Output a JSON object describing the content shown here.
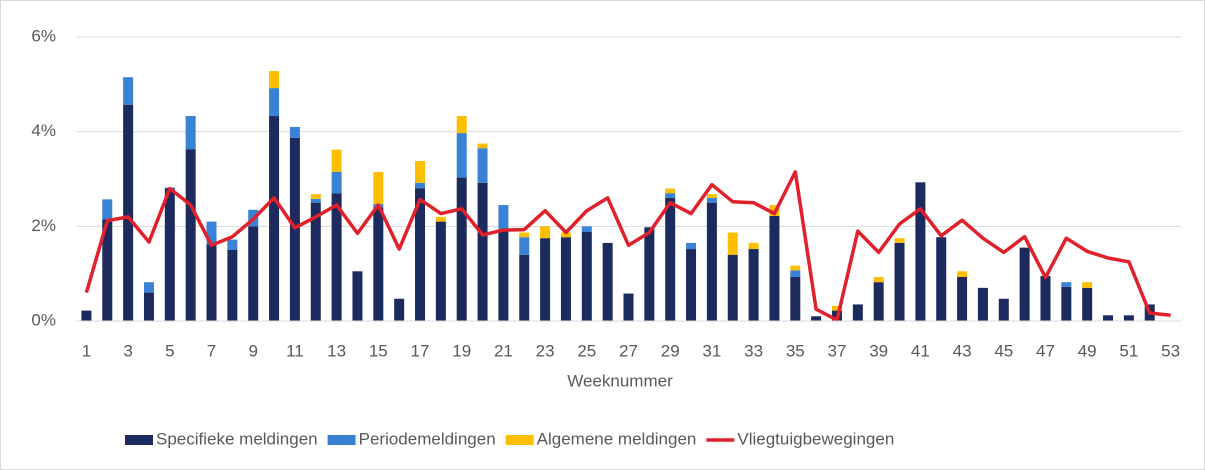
{
  "chart_data": {
    "type": "bar",
    "stacked": true,
    "x_label": "Weeknummer",
    "categories": [
      "1",
      null,
      "3",
      null,
      "5",
      null,
      "7",
      null,
      "9",
      null,
      "11",
      null,
      "13",
      null,
      "15",
      null,
      "17",
      null,
      "19",
      null,
      "21",
      null,
      "23",
      null,
      "25",
      null,
      "27",
      null,
      "29",
      null,
      "31",
      null,
      "33",
      null,
      "35",
      null,
      "37",
      null,
      "39",
      null,
      "41",
      null,
      "43",
      null,
      "45",
      null,
      "47",
      null,
      "49",
      null,
      "51",
      null,
      "53"
    ],
    "ylim": [
      0,
      6
    ],
    "yticks": [
      {
        "value": 0,
        "label": "0%"
      },
      {
        "value": 2,
        "label": "2%"
      },
      {
        "value": 4,
        "label": "4%"
      },
      {
        "value": 6,
        "label": "6%"
      }
    ],
    "grid": true,
    "legend": "bottom",
    "series": [
      {
        "name": "Specifieke meldingen",
        "color": "#1c2a5e",
        "values": [
          0.22,
          2.15,
          4.57,
          0.6,
          2.8,
          3.63,
          1.62,
          1.5,
          2.0,
          4.33,
          3.87,
          2.5,
          2.7,
          1.05,
          2.4,
          0.47,
          2.8,
          2.1,
          3.03,
          2.92,
          1.9,
          1.4,
          1.75,
          1.77,
          1.88,
          1.65,
          0.58,
          1.98,
          2.6,
          1.52,
          2.5,
          1.4,
          1.52,
          2.22,
          0.93,
          0.1,
          0.22,
          0.35,
          0.82,
          1.65,
          2.93,
          1.77,
          0.93,
          0.7,
          0.47,
          1.55,
          0.95,
          0.72,
          0.7,
          0.12,
          0.12,
          0.35,
          0
        ]
      },
      {
        "name": "Periodemeldingen",
        "color": "#3a82d6",
        "values": [
          0,
          0.42,
          0.58,
          0.22,
          0.02,
          0.7,
          0.48,
          0.22,
          0.35,
          0.59,
          0.23,
          0.08,
          0.45,
          0,
          0.07,
          0,
          0.12,
          0,
          0.94,
          0.73,
          0.55,
          0.37,
          0,
          0,
          0.12,
          0,
          0,
          0,
          0.1,
          0.13,
          0.1,
          0,
          0,
          0,
          0.14,
          0,
          0,
          0,
          0,
          0,
          0,
          0,
          0,
          0,
          0,
          0,
          0,
          0.1,
          0,
          0,
          0,
          0,
          0
        ]
      },
      {
        "name": "Algemene meldingen",
        "color": "#fbbf00",
        "values": [
          0,
          0,
          0,
          0,
          0,
          0,
          0,
          0,
          0,
          0.36,
          0,
          0.1,
          0.47,
          0,
          0.68,
          0,
          0.46,
          0.1,
          0.36,
          0.1,
          0,
          0.1,
          0.25,
          0.1,
          0,
          0,
          0,
          0,
          0.1,
          0,
          0.08,
          0.47,
          0.13,
          0.23,
          0.1,
          0,
          0.1,
          0,
          0.11,
          0.1,
          0,
          0,
          0.12,
          0,
          0,
          0,
          0,
          0,
          0.12,
          0,
          0,
          0,
          0
        ]
      },
      {
        "name": "Vliegtuigbewegingen",
        "color": "#e0202a",
        "type": "line",
        "values": [
          0.6,
          2.12,
          2.2,
          1.67,
          2.8,
          2.45,
          1.6,
          1.78,
          2.15,
          2.6,
          1.97,
          2.2,
          2.45,
          1.85,
          2.45,
          1.52,
          2.57,
          2.27,
          2.37,
          1.82,
          1.92,
          1.93,
          2.33,
          1.87,
          2.33,
          2.6,
          1.6,
          1.87,
          2.5,
          2.27,
          2.88,
          2.52,
          2.5,
          2.27,
          3.15,
          0.25,
          0.02,
          1.9,
          1.45,
          2.05,
          2.37,
          1.8,
          2.13,
          1.75,
          1.45,
          1.78,
          0.92,
          1.75,
          1.47,
          1.33,
          1.25,
          0.17,
          0.12
        ]
      }
    ]
  }
}
